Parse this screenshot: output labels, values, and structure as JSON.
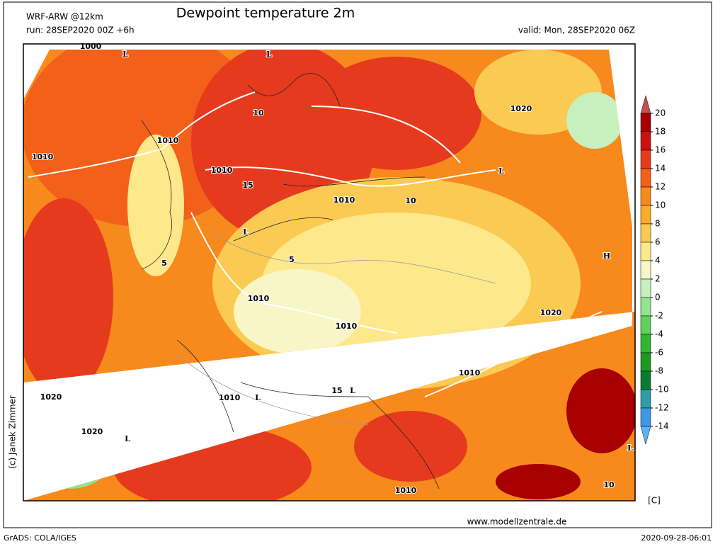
{
  "header": {
    "model": "WRF-ARW @12km",
    "title": "Dewpoint temperature 2m",
    "run": "run: 28SEP2020 00Z +6h",
    "valid": "valid: Mon, 28SEP2020 06Z"
  },
  "colorbar": {
    "ticks": [
      20,
      18,
      16,
      14,
      12,
      10,
      8,
      6,
      4,
      2,
      0,
      -2,
      -4,
      -6,
      -8,
      -10,
      -12,
      -14
    ],
    "colors": [
      "#c8504f",
      "#a80000",
      "#cc1111",
      "#e53a1e",
      "#f2601a",
      "#f7891d",
      "#f9ab2a",
      "#fbca52",
      "#fde88c",
      "#f8f6c6",
      "#c6f0bd",
      "#93e38f",
      "#5ed25a",
      "#33b532",
      "#1e981e",
      "#0b7a35",
      "#2d9ea6",
      "#3d98e6",
      "#5db3f7"
    ],
    "unit": "[C]"
  },
  "map_labels": [
    "1000",
    "L",
    "L",
    "10",
    "1010",
    "1010",
    "1010",
    "1010",
    "L",
    "1020",
    "L",
    "H",
    "1010",
    "1010",
    "1020",
    "1010",
    "1020",
    "1010",
    "L",
    "1020",
    "L",
    "L",
    "1010",
    "L",
    "5",
    "5",
    "10",
    "15",
    "15",
    "10"
  ],
  "footer": {
    "url": "www.modellzentrale.de",
    "software": "GrADS: COLA/IGES",
    "timestamp": "2020-09-28-06:01",
    "copyright": "(c) Janek Zimmer"
  }
}
